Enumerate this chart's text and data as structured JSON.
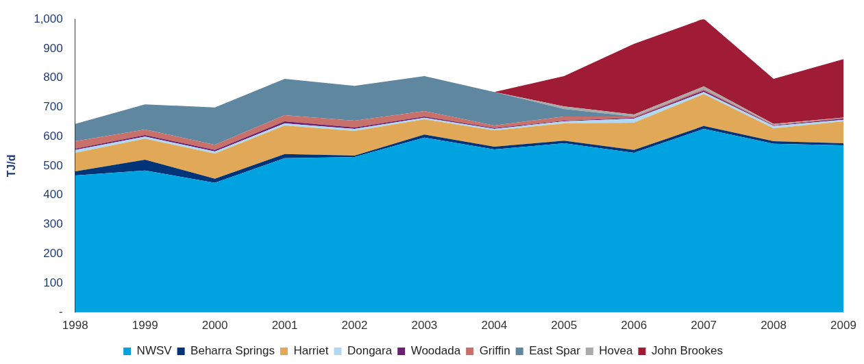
{
  "chart_data": {
    "type": "area",
    "stacked": true,
    "ylabel": "TJ/d",
    "categories": [
      "1998",
      "1999",
      "2000",
      "2001",
      "2002",
      "2003",
      "2004",
      "2005",
      "2006",
      "2007",
      "2008",
      "2009"
    ],
    "series": [
      {
        "name": "NWSV",
        "color": "#00a3e0",
        "values": [
          467,
          484,
          442,
          526,
          530,
          596,
          556,
          577,
          544,
          626,
          575,
          570
        ]
      },
      {
        "name": "Beharra Springs",
        "color": "#003478",
        "values": [
          14,
          37,
          14,
          14,
          5,
          11,
          9,
          9,
          10,
          10,
          9,
          7
        ]
      },
      {
        "name": "Harriet",
        "color": "#e0a857",
        "values": [
          63,
          72,
          86,
          98,
          84,
          52,
          56,
          59,
          93,
          109,
          44,
          75
        ]
      },
      {
        "name": "Dongara",
        "color": "#b0d8f0",
        "values": [
          10,
          7,
          7,
          7,
          7,
          5,
          5,
          7,
          14,
          7,
          8,
          5
        ]
      },
      {
        "name": "Woodada",
        "color": "#6b2070",
        "values": [
          4,
          5,
          5,
          7,
          5,
          4,
          3,
          2,
          3,
          5,
          2,
          4
        ]
      },
      {
        "name": "Griffin",
        "color": "#c8706a",
        "values": [
          26,
          19,
          18,
          21,
          23,
          19,
          9,
          14,
          4,
          5,
          2,
          3
        ]
      },
      {
        "name": "East Spar",
        "color": "#5f87a0",
        "values": [
          59,
          86,
          127,
          124,
          119,
          119,
          114,
          26,
          0,
          0,
          0,
          0
        ]
      },
      {
        "name": "Hovea",
        "color": "#aaaaaa",
        "values": [
          null,
          null,
          null,
          null,
          null,
          null,
          0,
          9,
          7,
          9,
          3,
          1
        ]
      },
      {
        "name": "John Brookes",
        "color": "#a01c36",
        "values": [
          null,
          null,
          null,
          null,
          null,
          null,
          0,
          103,
          241,
          231,
          154,
          199
        ]
      }
    ],
    "ylim": [
      0,
      1000
    ],
    "yticks": [
      {
        "value": 0,
        "label": "-"
      },
      100,
      200,
      300,
      400,
      500,
      600,
      700,
      800,
      900,
      {
        "value": 1000,
        "label": "1,000"
      }
    ],
    "grid": false,
    "legend": "bottom"
  }
}
